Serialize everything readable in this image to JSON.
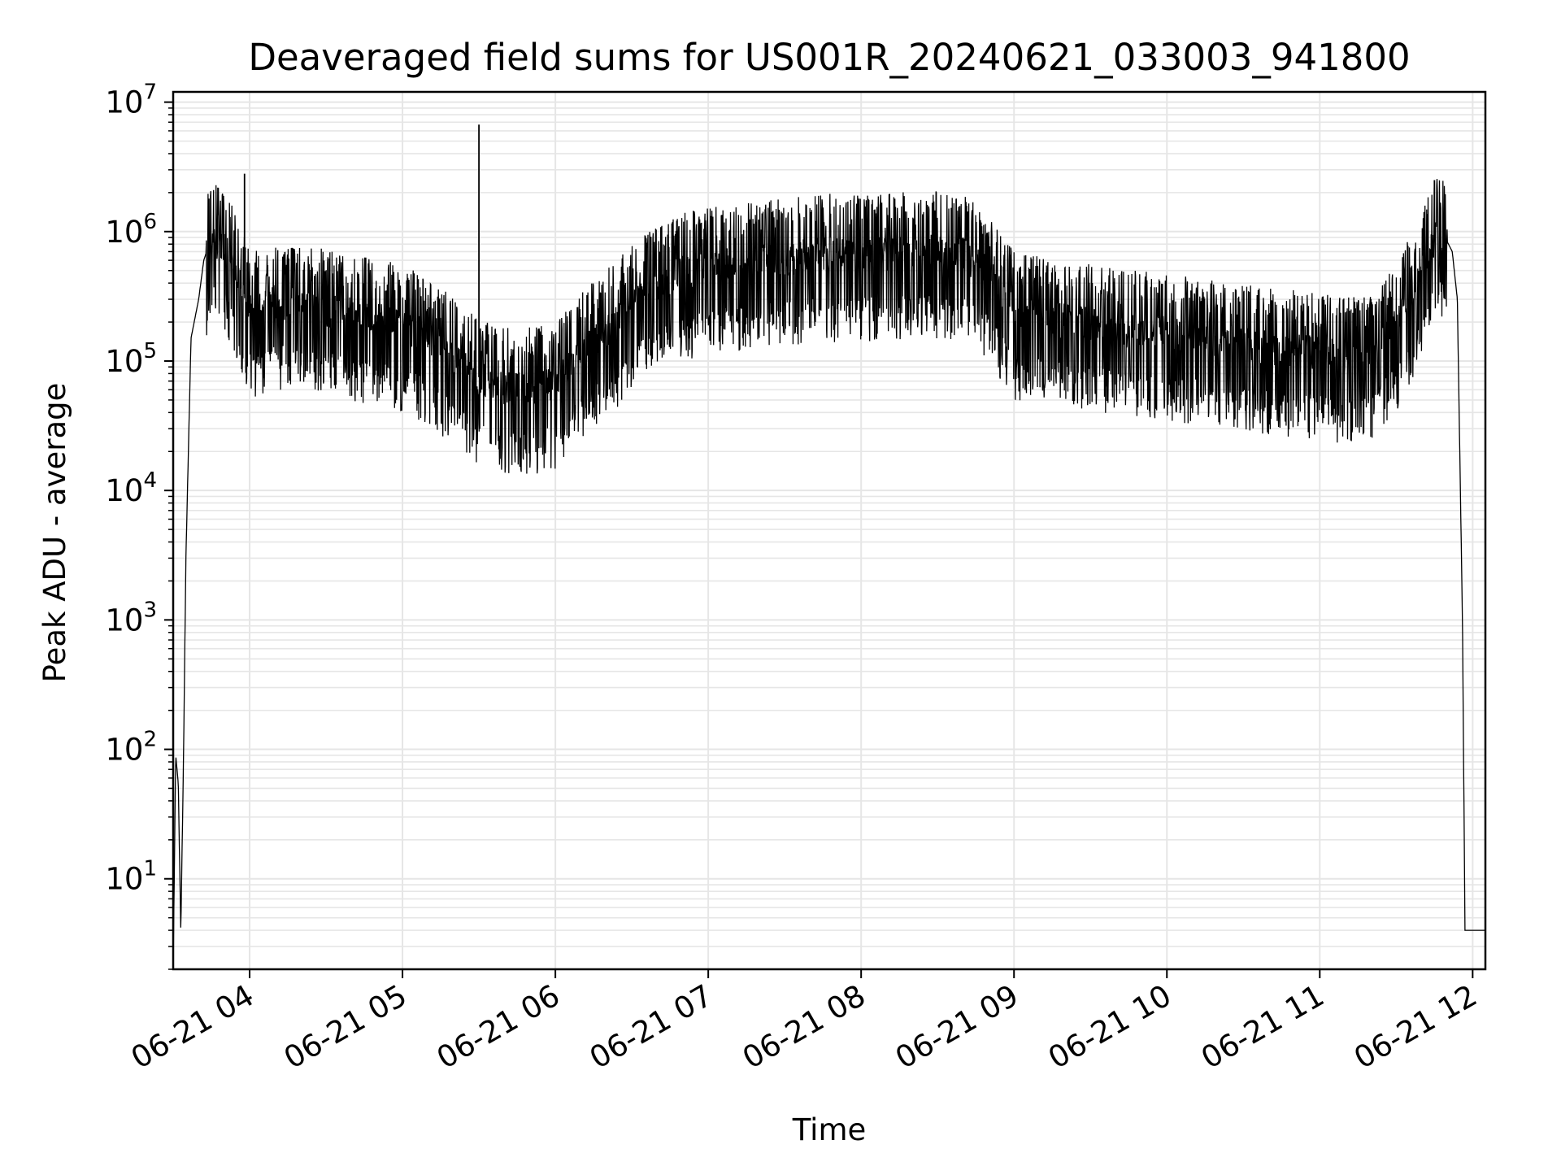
{
  "chart_data": {
    "type": "line",
    "title": "Deaveraged field sums for US001R_20240621_033003_941800",
    "xlabel": "Time",
    "ylabel": "Peak ADU - average",
    "x_ticks": [
      "06-21 04",
      "06-21 05",
      "06-21 06",
      "06-21 07",
      "06-21 08",
      "06-21 09",
      "06-21 10",
      "06-21 11",
      "06-21 12"
    ],
    "x_range": [
      "2024-06-21 03:30",
      "2024-06-21 12:05"
    ],
    "y_scale": "log",
    "y_ticks": [
      {
        "base": "10",
        "exp": "1"
      },
      {
        "base": "10",
        "exp": "2"
      },
      {
        "base": "10",
        "exp": "3"
      },
      {
        "base": "10",
        "exp": "4"
      },
      {
        "base": "10",
        "exp": "5"
      },
      {
        "base": "10",
        "exp": "6"
      },
      {
        "base": "10",
        "exp": "7"
      }
    ],
    "ylim": [
      2,
      12000000
    ],
    "grid": true,
    "line_color": "#000000",
    "grid_color": "#e6e6e6",
    "series": [
      {
        "x": [
          "03:30",
          "03:31",
          "03:32",
          "03:33",
          "03:34",
          "03:35",
          "03:37",
          "03:40",
          "03:42",
          "03:45",
          "03:50",
          "03:55",
          "04:00",
          "04:10",
          "04:20",
          "04:30",
          "04:40",
          "04:50",
          "05:00",
          "05:10",
          "05:20",
          "05:30",
          "05:40",
          "05:50",
          "06:00",
          "06:10",
          "06:20",
          "06:30",
          "06:40",
          "06:50",
          "07:00",
          "07:15",
          "07:30",
          "07:45",
          "08:00",
          "08:15",
          "08:30",
          "08:40",
          "08:50",
          "09:00",
          "09:15",
          "09:30",
          "09:45",
          "10:00",
          "10:15",
          "10:30",
          "10:45",
          "11:00",
          "11:10",
          "11:20",
          "11:30",
          "11:40",
          "11:45",
          "11:48",
          "11:52",
          "11:54",
          "11:56",
          "11:57",
          "12:00",
          "12:05"
        ],
        "y": [
          2,
          90,
          55,
          4,
          70,
          3000,
          150000,
          300000,
          600000,
          900000,
          800000,
          500000,
          250000,
          300000,
          280000,
          260000,
          240000,
          220000,
          200000,
          160000,
          110000,
          75000,
          65000,
          65000,
          70000,
          120000,
          180000,
          280000,
          400000,
          500000,
          550000,
          600000,
          650000,
          700000,
          700000,
          720000,
          730000,
          700000,
          500000,
          250000,
          220000,
          200000,
          180000,
          170000,
          160000,
          140000,
          130000,
          120000,
          110000,
          120000,
          200000,
          500000,
          900000,
          1000000,
          700000,
          300000,
          1000,
          4,
          4,
          4
        ]
      }
    ],
    "annotations_spikes": [
      {
        "x": "03:58",
        "y": 2800000
      },
      {
        "x": "05:30",
        "y": 6700000
      },
      {
        "x": "11:45",
        "y": 2500000
      }
    ]
  }
}
